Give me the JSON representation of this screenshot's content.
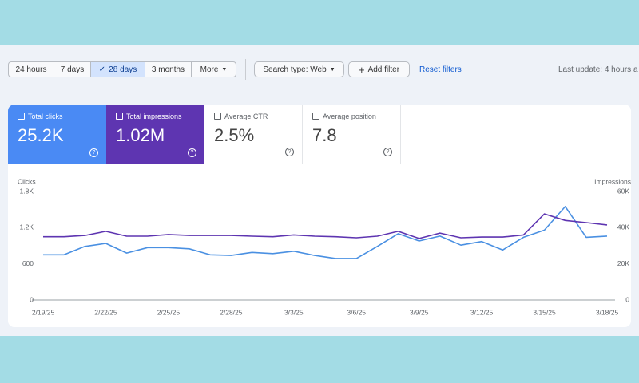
{
  "toolbar": {
    "ranges": [
      "24 hours",
      "7 days",
      "28 days",
      "3 months"
    ],
    "more": "More",
    "search_type": "Search type: Web",
    "add_filter": "Add filter",
    "reset_filters": "Reset filters",
    "last_update": "Last update: 4 hours a"
  },
  "metrics": [
    {
      "label": "Total clicks",
      "value": "25.2K"
    },
    {
      "label": "Total impressions",
      "value": "1.02M"
    },
    {
      "label": "Average CTR",
      "value": "2.5%"
    },
    {
      "label": "Average position",
      "value": "7.8"
    }
  ],
  "chart_data": {
    "type": "line",
    "categories": [
      "2/19/25",
      null,
      null,
      "2/22/25",
      null,
      null,
      "2/25/25",
      null,
      null,
      "2/28/25",
      null,
      null,
      "3/3/25",
      null,
      null,
      "3/6/25",
      null,
      null,
      "3/9/25",
      null,
      null,
      "3/12/25",
      null,
      null,
      "3/15/25",
      null,
      null,
      "3/18/25"
    ],
    "series": [
      {
        "name": "Clicks",
        "color": "#4a90e2",
        "values": [
          750,
          750,
          890,
          940,
          780,
          870,
          870,
          850,
          750,
          740,
          790,
          770,
          810,
          740,
          690,
          690,
          890,
          1100,
          980,
          1060,
          910,
          970,
          830,
          1040,
          1160,
          1550,
          1040,
          1060
        ]
      },
      {
        "name": "Impressions",
        "color": "#5e35b1",
        "axis": "y2",
        "values": [
          35000,
          35000,
          35700,
          38000,
          35300,
          35300,
          36200,
          35700,
          35700,
          35700,
          35300,
          35000,
          36000,
          35300,
          35000,
          34400,
          35300,
          38000,
          34000,
          37000,
          34400,
          34800,
          34800,
          36000,
          47600,
          44000,
          42800,
          41500
        ]
      }
    ],
    "ylim": [
      0,
      1800
    ],
    "yticks": [
      {
        "value": 1800,
        "label": "1.8K"
      },
      {
        "value": 1200,
        "label": "1.2K"
      },
      600,
      0
    ],
    "y2lim": [
      0,
      60000
    ],
    "y2ticks": [
      {
        "value": 60000,
        "label": "60K"
      },
      {
        "value": 40000,
        "label": "40K"
      },
      {
        "value": 20000,
        "label": "20K"
      },
      0
    ]
  }
}
